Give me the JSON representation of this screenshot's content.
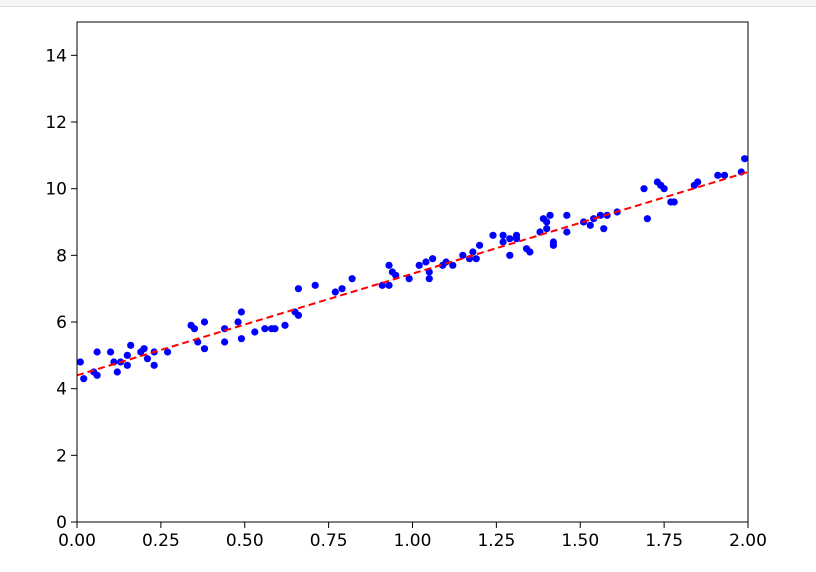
{
  "chart_data": {
    "type": "scatter",
    "title": "",
    "xlabel": "",
    "ylabel": "",
    "xlim": [
      0,
      2
    ],
    "ylim": [
      0,
      15
    ],
    "grid": false,
    "x_ticks": [
      "0.00",
      "0.25",
      "0.50",
      "0.75",
      "1.00",
      "1.25",
      "1.50",
      "1.75",
      "2.00"
    ],
    "y_ticks": [
      "0",
      "2",
      "4",
      "6",
      "8",
      "10",
      "12",
      "14"
    ],
    "fit_line": {
      "x": [
        0,
        2
      ],
      "y": [
        4.4,
        10.5
      ],
      "color": "#ff0000",
      "style": "dashed"
    },
    "point_color": "#0000ff",
    "series": [
      {
        "x": [
          0.01,
          0.02,
          0.05,
          0.06,
          0.06,
          0.1,
          0.11,
          0.12,
          0.13,
          0.15,
          0.15,
          0.16,
          0.19,
          0.2,
          0.21,
          0.23,
          0.23,
          0.27,
          0.34,
          0.35,
          0.36,
          0.38,
          0.38,
          0.44,
          0.44,
          0.48,
          0.49,
          0.49,
          0.53,
          0.56,
          0.58,
          0.59,
          0.62,
          0.65,
          0.66,
          0.66,
          0.71,
          0.77,
          0.79,
          0.82,
          0.91,
          0.93,
          0.93,
          0.94,
          0.95,
          0.99,
          1.02,
          1.04,
          1.05,
          1.05,
          1.06,
          1.09,
          1.1,
          1.12,
          1.15,
          1.17,
          1.18,
          1.19,
          1.2,
          1.24,
          1.27,
          1.27,
          1.29,
          1.29,
          1.31,
          1.31,
          1.34,
          1.35,
          1.38,
          1.39,
          1.4,
          1.4,
          1.41,
          1.42,
          1.42,
          1.46,
          1.46,
          1.51,
          1.53,
          1.54,
          1.56,
          1.57,
          1.58,
          1.61,
          1.69,
          1.7,
          1.73,
          1.74,
          1.75,
          1.77,
          1.78,
          1.84,
          1.85,
          1.91,
          1.93,
          1.98,
          1.99
        ],
        "y": [
          4.8,
          4.3,
          4.5,
          4.4,
          5.1,
          5.1,
          4.8,
          4.5,
          4.8,
          4.7,
          5.0,
          5.3,
          5.1,
          5.2,
          4.9,
          4.7,
          5.1,
          5.1,
          5.9,
          5.8,
          5.4,
          6.0,
          5.2,
          5.8,
          5.4,
          6.0,
          6.3,
          5.5,
          5.7,
          5.8,
          5.8,
          5.8,
          5.9,
          6.3,
          6.2,
          7.0,
          7.1,
          6.9,
          7.0,
          7.3,
          7.1,
          7.1,
          7.7,
          7.5,
          7.4,
          7.3,
          7.7,
          7.8,
          7.5,
          7.3,
          7.9,
          7.7,
          7.8,
          7.7,
          8.0,
          7.9,
          8.1,
          7.9,
          8.3,
          8.6,
          8.6,
          8.4,
          8.5,
          8.0,
          8.6,
          8.5,
          8.2,
          8.1,
          8.7,
          9.1,
          8.8,
          9.0,
          9.2,
          8.4,
          8.3,
          9.2,
          8.7,
          9.0,
          8.9,
          9.1,
          9.2,
          8.8,
          9.2,
          9.3,
          10.0,
          9.1,
          10.2,
          10.1,
          10.0,
          9.6,
          9.6,
          10.1,
          10.2,
          10.4,
          10.4,
          10.5,
          10.9
        ]
      }
    ]
  }
}
